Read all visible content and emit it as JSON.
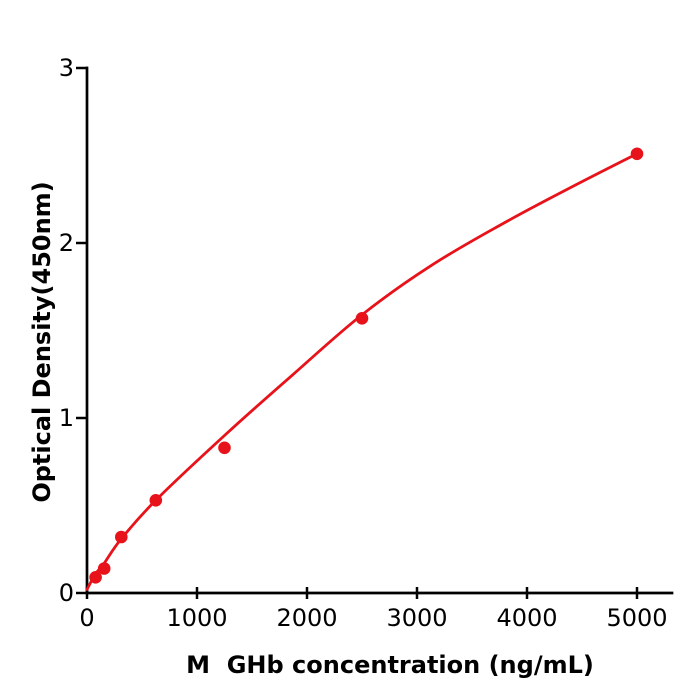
{
  "figure": {
    "background_color": "#ffffff",
    "axis_color": "#000000",
    "accent_color": "#e8121a"
  },
  "chart_data": {
    "type": "scatter",
    "title": "",
    "xlabel": "M  GHb concentration (ng/mL)",
    "ylabel": "Optical Density(450nm)",
    "xlim": [
      0,
      5320
    ],
    "ylim": [
      0,
      3
    ],
    "x_ticks": [
      0,
      1000,
      2000,
      3000,
      4000,
      5000
    ],
    "y_ticks": [
      0,
      1,
      2,
      3
    ],
    "grid": false,
    "legend": false,
    "series": [
      {
        "name": "fitted-standard-curve",
        "type": "line",
        "color": "#e8121a",
        "x": [
          0,
          78,
          156,
          312,
          625,
          1250,
          1875,
          2500,
          3125,
          3750,
          4375,
          5000
        ],
        "y": [
          0.02,
          0.11,
          0.17,
          0.31,
          0.53,
          0.9,
          1.25,
          1.59,
          1.87,
          2.1,
          2.31,
          2.51
        ]
      },
      {
        "name": "measured-standard-points",
        "type": "scatter",
        "color": "#e8121a",
        "x": [
          78,
          156,
          312,
          625,
          1250,
          2500,
          5000
        ],
        "y": [
          0.09,
          0.14,
          0.32,
          0.53,
          0.83,
          1.57,
          2.51
        ]
      }
    ]
  }
}
